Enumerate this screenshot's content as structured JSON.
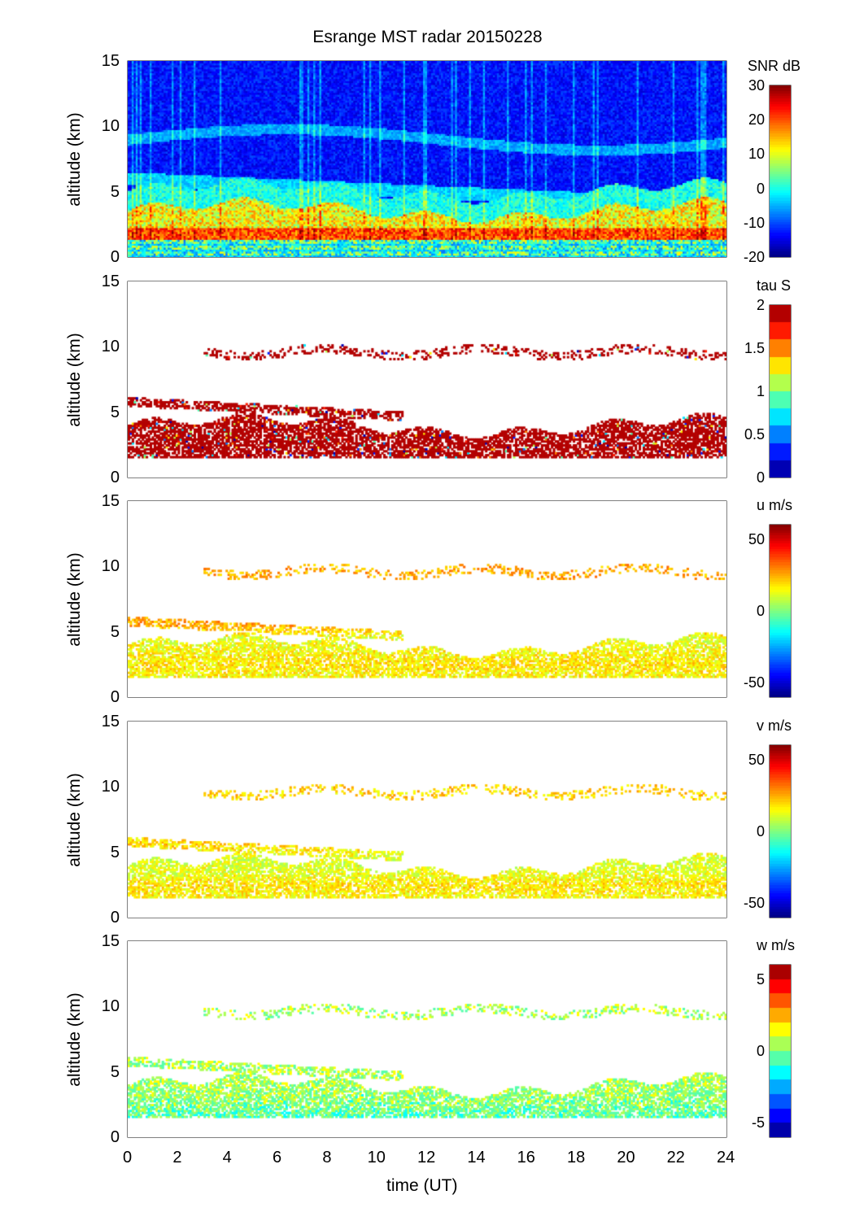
{
  "chart_data": {
    "type": "heatmap",
    "title": "Esrange MST radar 20150228",
    "xlabel": "time (UT)",
    "xlim": [
      0,
      24
    ],
    "xticks": [
      "0",
      "2",
      "4",
      "6",
      "8",
      "10",
      "12",
      "14",
      "16",
      "18",
      "20",
      "22",
      "24"
    ],
    "panels": [
      {
        "name": "snr",
        "ylabel": "altitude (km)",
        "ylim": [
          0,
          15
        ],
        "yticks": [
          "0",
          "5",
          "10",
          "15"
        ],
        "colorbar_label": "SNR dB",
        "clim": [
          -20,
          30
        ],
        "cticks": [
          "-20",
          "-10",
          "0",
          "10",
          "20",
          "30"
        ],
        "colormap": "jet",
        "levels": 64,
        "profile_km": [
          0.5,
          1.5,
          2.5,
          3.5,
          4.5,
          5.5,
          7,
          9.5,
          12,
          14
        ],
        "profile_value": [
          -5,
          22,
          18,
          8,
          2,
          -3,
          -14,
          -6,
          -16,
          -17
        ]
      },
      {
        "name": "tau",
        "ylabel": "altitude (km)",
        "ylim": [
          0,
          15
        ],
        "yticks": [
          "0",
          "5",
          "10",
          "15"
        ],
        "colorbar_label": "tau S",
        "clim": [
          0,
          2
        ],
        "cticks": [
          "0",
          "0.5",
          "1",
          "1.5",
          "2"
        ],
        "colormap": "jet",
        "levels": 10,
        "profile_km": [
          1.5,
          2.5,
          3.5,
          4.5,
          5.5,
          10
        ],
        "profile_value": [
          2,
          2,
          2,
          2,
          2,
          2
        ]
      },
      {
        "name": "u",
        "ylabel": "altitude (km)",
        "ylim": [
          0,
          15
        ],
        "yticks": [
          "0",
          "5",
          "10",
          "15"
        ],
        "colorbar_label": "u m/s",
        "clim": [
          -60,
          60
        ],
        "cticks": [
          "-50",
          "0",
          "50"
        ],
        "colormap": "jet",
        "levels": 64,
        "profile_km": [
          1.5,
          2.5,
          3.5,
          4.5,
          5.5,
          10
        ],
        "profile_value": [
          15,
          18,
          15,
          12,
          25,
          25
        ]
      },
      {
        "name": "v",
        "ylabel": "altitude (km)",
        "ylim": [
          0,
          15
        ],
        "yticks": [
          "0",
          "5",
          "10",
          "15"
        ],
        "colorbar_label": "v m/s",
        "clim": [
          -60,
          60
        ],
        "cticks": [
          "-50",
          "0",
          "50"
        ],
        "colormap": "jet",
        "levels": 64,
        "profile_km": [
          1.5,
          2.5,
          3.5,
          4.5,
          5.5,
          10
        ],
        "profile_value": [
          15,
          18,
          12,
          10,
          20,
          20
        ]
      },
      {
        "name": "w",
        "ylabel": "altitude (km)",
        "ylim": [
          0,
          15
        ],
        "yticks": [
          "0",
          "5",
          "10",
          "15"
        ],
        "colorbar_label": "w m/s",
        "clim": [
          -6,
          6
        ],
        "cticks": [
          "-5",
          "0",
          "5"
        ],
        "colormap": "jet",
        "levels": 12,
        "profile_km": [
          1.5,
          2.5,
          3.5,
          4.5,
          5.5,
          10
        ],
        "profile_value": [
          -0.5,
          0,
          0.3,
          0.5,
          0.5,
          0.5
        ]
      }
    ]
  }
}
